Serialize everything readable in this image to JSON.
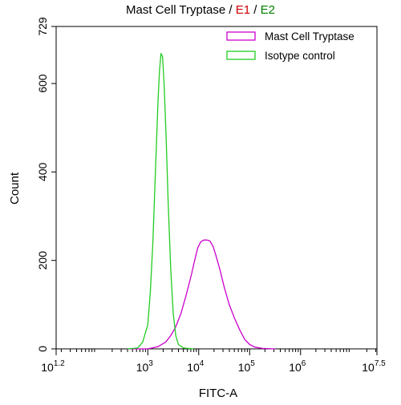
{
  "chart_data": {
    "type": "line",
    "title_parts": {
      "main": "Mast Cell Tryptase",
      "sep1": " / ",
      "e1": "E1",
      "sep2": " / ",
      "e2": "E2"
    },
    "xlabel": "FITC-A",
    "ylabel": "Count",
    "x_scale": "log10",
    "xlim": [
      1.2,
      7.5
    ],
    "ylim": [
      0,
      729
    ],
    "y_ticks": [
      0,
      200,
      400,
      600,
      729
    ],
    "x_ticks": [
      {
        "base": "10",
        "exp": "1.2",
        "value": 1.2
      },
      {
        "base": "10",
        "exp": "3",
        "value": 3
      },
      {
        "base": "10",
        "exp": "4",
        "value": 4
      },
      {
        "base": "10",
        "exp": "5",
        "value": 5
      },
      {
        "base": "10",
        "exp": "6",
        "value": 6
      },
      {
        "base": "10",
        "exp": "7.5",
        "value": 7.5
      }
    ],
    "legend_position": "top-right",
    "colors": {
      "e1": "#cc0000",
      "e2": "#008000"
    },
    "series": [
      {
        "name": "Mast Cell Tryptase",
        "color": "#cc00cc",
        "points": [
          [
            2.6,
            0
          ],
          [
            3.0,
            0
          ],
          [
            3.2,
            5
          ],
          [
            3.35,
            15
          ],
          [
            3.45,
            30
          ],
          [
            3.55,
            50
          ],
          [
            3.65,
            80
          ],
          [
            3.75,
            120
          ],
          [
            3.85,
            165
          ],
          [
            3.92,
            200
          ],
          [
            3.98,
            228
          ],
          [
            4.04,
            242
          ],
          [
            4.1,
            246
          ],
          [
            4.16,
            246
          ],
          [
            4.22,
            244
          ],
          [
            4.28,
            232
          ],
          [
            4.34,
            210
          ],
          [
            4.42,
            178
          ],
          [
            4.5,
            140
          ],
          [
            4.6,
            100
          ],
          [
            4.7,
            70
          ],
          [
            4.8,
            44
          ],
          [
            4.9,
            22
          ],
          [
            5.0,
            10
          ],
          [
            5.1,
            4
          ],
          [
            5.25,
            1
          ],
          [
            5.5,
            0
          ]
        ]
      },
      {
        "name": "Isotype control",
        "color": "#22cc22",
        "points": [
          [
            2.6,
            0
          ],
          [
            2.8,
            2
          ],
          [
            2.9,
            15
          ],
          [
            3.0,
            55
          ],
          [
            3.05,
            130
          ],
          [
            3.1,
            240
          ],
          [
            3.15,
            400
          ],
          [
            3.2,
            560
          ],
          [
            3.23,
            630
          ],
          [
            3.26,
            668
          ],
          [
            3.29,
            660
          ],
          [
            3.32,
            600
          ],
          [
            3.36,
            480
          ],
          [
            3.4,
            330
          ],
          [
            3.45,
            180
          ],
          [
            3.5,
            80
          ],
          [
            3.55,
            30
          ],
          [
            3.6,
            10
          ],
          [
            3.7,
            2
          ],
          [
            3.9,
            0
          ]
        ]
      }
    ]
  }
}
